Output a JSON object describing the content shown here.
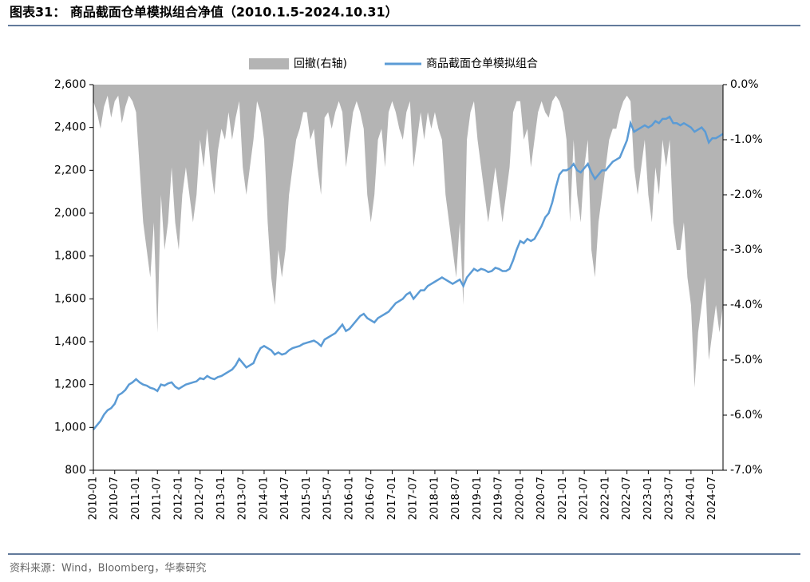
{
  "title": "图表31： 商品截面仓单模拟组合净值（2010.1.5-2024.10.31）",
  "source": "资料来源：Wind，Bloomberg，华泰研究",
  "chart_data": {
    "type": "line",
    "x": [
      "2010-01",
      "2010-02",
      "2010-03",
      "2010-04",
      "2010-05",
      "2010-06",
      "2010-07",
      "2010-08",
      "2010-09",
      "2010-10",
      "2010-11",
      "2010-12",
      "2011-01",
      "2011-02",
      "2011-03",
      "2011-04",
      "2011-05",
      "2011-06",
      "2011-07",
      "2011-08",
      "2011-09",
      "2011-10",
      "2011-11",
      "2011-12",
      "2012-01",
      "2012-02",
      "2012-03",
      "2012-04",
      "2012-05",
      "2012-06",
      "2012-07",
      "2012-08",
      "2012-09",
      "2012-10",
      "2012-11",
      "2012-12",
      "2013-01",
      "2013-02",
      "2013-03",
      "2013-04",
      "2013-05",
      "2013-06",
      "2013-07",
      "2013-08",
      "2013-09",
      "2013-10",
      "2013-11",
      "2013-12",
      "2014-01",
      "2014-02",
      "2014-03",
      "2014-04",
      "2014-05",
      "2014-06",
      "2014-07",
      "2014-08",
      "2014-09",
      "2014-10",
      "2014-11",
      "2014-12",
      "2015-01",
      "2015-02",
      "2015-03",
      "2015-04",
      "2015-05",
      "2015-06",
      "2015-07",
      "2015-08",
      "2015-09",
      "2015-10",
      "2015-11",
      "2015-12",
      "2016-01",
      "2016-02",
      "2016-03",
      "2016-04",
      "2016-05",
      "2016-06",
      "2016-07",
      "2016-08",
      "2016-09",
      "2016-10",
      "2016-11",
      "2016-12",
      "2017-01",
      "2017-02",
      "2017-03",
      "2017-04",
      "2017-05",
      "2017-06",
      "2017-07",
      "2017-08",
      "2017-09",
      "2017-10",
      "2017-11",
      "2017-12",
      "2018-01",
      "2018-02",
      "2018-03",
      "2018-04",
      "2018-05",
      "2018-06",
      "2018-07",
      "2018-08",
      "2018-09",
      "2018-10",
      "2018-11",
      "2018-12",
      "2019-01",
      "2019-02",
      "2019-03",
      "2019-04",
      "2019-05",
      "2019-06",
      "2019-07",
      "2019-08",
      "2019-09",
      "2019-10",
      "2019-11",
      "2019-12",
      "2020-01",
      "2020-02",
      "2020-03",
      "2020-04",
      "2020-05",
      "2020-06",
      "2020-07",
      "2020-08",
      "2020-09",
      "2020-10",
      "2020-11",
      "2020-12",
      "2021-01",
      "2021-02",
      "2021-03",
      "2021-04",
      "2021-05",
      "2021-06",
      "2021-07",
      "2021-08",
      "2021-09",
      "2021-10",
      "2021-11",
      "2021-12",
      "2022-01",
      "2022-02",
      "2022-03",
      "2022-04",
      "2022-05",
      "2022-06",
      "2022-07",
      "2022-08",
      "2022-09",
      "2022-10",
      "2022-11",
      "2022-12",
      "2023-01",
      "2023-02",
      "2023-03",
      "2023-04",
      "2023-05",
      "2023-06",
      "2023-07",
      "2023-08",
      "2023-09",
      "2023-10",
      "2023-11",
      "2023-12",
      "2024-01",
      "2024-02",
      "2024-03",
      "2024-04",
      "2024-05",
      "2024-06",
      "2024-07",
      "2024-08",
      "2024-09",
      "2024-10"
    ],
    "xlim": [
      "2010-01",
      "2024-10"
    ],
    "xticks": [
      "2010-01",
      "2010-07",
      "2011-01",
      "2011-07",
      "2012-01",
      "2012-07",
      "2013-01",
      "2013-07",
      "2014-01",
      "2014-07",
      "2015-01",
      "2015-07",
      "2016-01",
      "2016-07",
      "2017-01",
      "2017-07",
      "2018-01",
      "2018-07",
      "2019-01",
      "2019-07",
      "2020-01",
      "2020-07",
      "2021-01",
      "2021-07",
      "2022-01",
      "2022-07",
      "2023-01",
      "2023-07",
      "2024-01",
      "2024-07"
    ],
    "series": [
      {
        "name": "回撤(右轴)",
        "color": "#b4b4b4",
        "axis": "y2",
        "style": "area",
        "values": [
          -0.3,
          -0.5,
          -0.8,
          -0.4,
          -0.2,
          -0.6,
          -0.3,
          -0.2,
          -0.7,
          -0.4,
          -0.2,
          -0.3,
          -0.5,
          -1.5,
          -2.5,
          -3.0,
          -3.5,
          -2.5,
          -4.5,
          -2.0,
          -3.0,
          -2.5,
          -1.5,
          -2.5,
          -3.0,
          -2.0,
          -1.5,
          -2.0,
          -2.5,
          -2.0,
          -1.0,
          -1.5,
          -0.8,
          -1.5,
          -2.0,
          -1.2,
          -0.8,
          -1.0,
          -0.5,
          -1.0,
          -0.6,
          -0.3,
          -1.5,
          -2.0,
          -1.5,
          -1.0,
          -0.3,
          -0.5,
          -1.0,
          -2.5,
          -3.5,
          -4.0,
          -3.0,
          -3.5,
          -3.0,
          -2.0,
          -1.5,
          -1.0,
          -0.8,
          -0.5,
          -0.5,
          -1.0,
          -0.8,
          -1.5,
          -2.0,
          -0.6,
          -0.5,
          -0.8,
          -0.5,
          -0.3,
          -0.5,
          -1.5,
          -1.0,
          -0.5,
          -0.3,
          -0.5,
          -0.8,
          -2.0,
          -2.5,
          -2.0,
          -1.0,
          -0.8,
          -1.5,
          -0.5,
          -0.3,
          -0.5,
          -0.8,
          -1.0,
          -0.5,
          -0.3,
          -1.5,
          -1.0,
          -0.5,
          -1.0,
          -0.5,
          -0.8,
          -0.5,
          -0.8,
          -1.0,
          -2.0,
          -2.5,
          -3.0,
          -3.5,
          -2.5,
          -4.0,
          -1.0,
          -0.5,
          -0.3,
          -1.0,
          -1.5,
          -2.0,
          -2.5,
          -2.0,
          -1.5,
          -2.0,
          -2.5,
          -2.0,
          -1.5,
          -0.5,
          -0.3,
          -0.3,
          -1.0,
          -0.8,
          -1.5,
          -1.0,
          -0.5,
          -0.3,
          -0.5,
          -0.6,
          -0.3,
          -0.2,
          -0.3,
          -0.5,
          -1.0,
          -2.5,
          -1.0,
          -2.0,
          -2.5,
          -1.5,
          -1.0,
          -3.0,
          -3.5,
          -2.5,
          -2.0,
          -1.5,
          -1.0,
          -0.8,
          -0.8,
          -0.5,
          -0.3,
          -0.2,
          -0.3,
          -1.5,
          -2.0,
          -1.5,
          -1.0,
          -2.0,
          -2.5,
          -1.5,
          -2.0,
          -1.0,
          -1.5,
          -1.0,
          -2.5,
          -3.0,
          -3.0,
          -2.5,
          -3.5,
          -4.0,
          -5.5,
          -4.5,
          -4.0,
          -3.5,
          -5.0,
          -4.5,
          -4.0,
          -4.5,
          -4.0
        ]
      },
      {
        "name": "商品截面仓单模拟组合",
        "color": "#5b9bd5",
        "style": "line",
        "values": [
          990,
          1010,
          1030,
          1060,
          1080,
          1090,
          1110,
          1150,
          1160,
          1175,
          1200,
          1210,
          1225,
          1210,
          1200,
          1195,
          1185,
          1180,
          1170,
          1200,
          1195,
          1205,
          1210,
          1190,
          1180,
          1190,
          1200,
          1205,
          1210,
          1215,
          1230,
          1225,
          1240,
          1230,
          1225,
          1235,
          1240,
          1250,
          1260,
          1270,
          1290,
          1320,
          1300,
          1280,
          1290,
          1300,
          1340,
          1370,
          1380,
          1370,
          1360,
          1340,
          1350,
          1340,
          1345,
          1360,
          1370,
          1375,
          1380,
          1390,
          1395,
          1400,
          1405,
          1395,
          1380,
          1410,
          1420,
          1430,
          1440,
          1460,
          1480,
          1450,
          1460,
          1480,
          1500,
          1520,
          1530,
          1510,
          1500,
          1490,
          1510,
          1520,
          1530,
          1540,
          1560,
          1580,
          1590,
          1600,
          1620,
          1630,
          1600,
          1620,
          1640,
          1640,
          1660,
          1670,
          1680,
          1690,
          1700,
          1690,
          1680,
          1670,
          1680,
          1690,
          1660,
          1700,
          1720,
          1740,
          1730,
          1740,
          1735,
          1725,
          1730,
          1745,
          1740,
          1730,
          1730,
          1740,
          1780,
          1830,
          1870,
          1860,
          1880,
          1870,
          1880,
          1910,
          1940,
          1980,
          2000,
          2050,
          2120,
          2180,
          2200,
          2200,
          2210,
          2230,
          2200,
          2190,
          2210,
          2230,
          2190,
          2160,
          2180,
          2200,
          2200,
          2220,
          2240,
          2250,
          2260,
          2300,
          2340,
          2420,
          2380,
          2390,
          2400,
          2410,
          2400,
          2410,
          2430,
          2420,
          2440,
          2440,
          2450,
          2420,
          2420,
          2410,
          2420,
          2410,
          2400,
          2380,
          2390,
          2400,
          2380,
          2330,
          2350,
          2350,
          2360,
          2370
        ]
      }
    ],
    "ylim": [
      800,
      2600
    ],
    "yticks": [
      800,
      {
        "value": 1000,
        "label": "1,000"
      },
      {
        "value": 1200,
        "label": "1,200"
      },
      {
        "value": 1400,
        "label": "1,400"
      },
      {
        "value": 1600,
        "label": "1,600"
      },
      {
        "value": 1800,
        "label": "1,800"
      },
      {
        "value": 2000,
        "label": "2,000"
      },
      {
        "value": 2200,
        "label": "2,200"
      },
      {
        "value": 2400,
        "label": "2,400"
      },
      {
        "value": 2600,
        "label": "2,600"
      }
    ],
    "y2lim": [
      -7,
      0
    ],
    "y2ticks": [
      {
        "value": 0,
        "label": "0.0%"
      },
      {
        "value": -1,
        "label": "-1.0%"
      },
      {
        "value": -2,
        "label": "-2.0%"
      },
      {
        "value": -3,
        "label": "-3.0%"
      },
      {
        "value": -4,
        "label": "-4.0%"
      },
      {
        "value": -5,
        "label": "-5.0%"
      },
      {
        "value": -6,
        "label": "-6.0%"
      },
      {
        "value": -7,
        "label": "-7.0%"
      }
    ],
    "grid": false,
    "legend": "top"
  }
}
